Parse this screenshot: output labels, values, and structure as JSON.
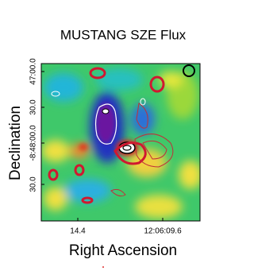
{
  "chart_data": {
    "type": "image",
    "title": "MUSTANG SZE Flux",
    "x_label": "Right Ascension",
    "y_label": "Declination",
    "xtick_labels": [
      "14.4",
      "12:06:09.6"
    ],
    "ytick_labels": [
      "47:00.0",
      "30.0",
      "-8:48:00.0",
      "30.0"
    ]
  }
}
